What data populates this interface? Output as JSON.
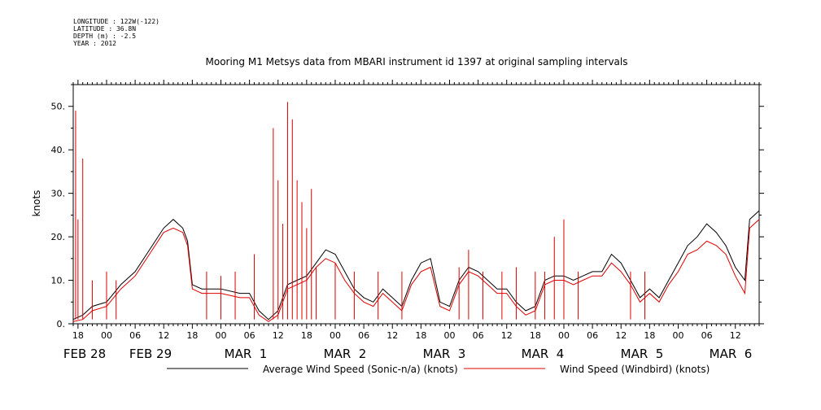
{
  "header": {
    "meta_lines": [
      "LONGITUDE : 122W(-122)",
      "LATITUDE : 36.8N",
      "DEPTH (m) : -2.5",
      "YEAR : 2012"
    ]
  },
  "chart_data": {
    "type": "line",
    "title": "Mooring M1 Metsys data from MBARI instrument id 1397 at original sampling intervals",
    "ylabel": "knots",
    "xlabel": "",
    "ylim": [
      0,
      55
    ],
    "xlim": [
      -7,
      137
    ],
    "x_unit": "hours since FEB 28 00:00 (2012)",
    "yticks": [
      0,
      10,
      20,
      30,
      40,
      50
    ],
    "ytick_labels": [
      "0.",
      "10.",
      "20.",
      "30.",
      "40.",
      "50."
    ],
    "xtick_hours": [
      -6,
      0,
      6,
      12,
      18,
      24,
      30,
      36,
      42,
      48,
      54,
      60,
      66,
      72,
      78,
      84,
      90,
      96,
      102,
      108,
      114,
      120,
      126,
      132
    ],
    "xtick_labels": [
      "18",
      "00",
      "06",
      "12",
      "18",
      "00",
      "06",
      "12",
      "18",
      "00",
      "06",
      "12",
      "18",
      "00",
      "06",
      "12",
      "18",
      "00",
      "06",
      "12",
      "18",
      "00",
      "06",
      "12"
    ],
    "date_labels": [
      {
        "text": "FEB 28",
        "hour": 0
      },
      {
        "text": "FEB 29",
        "hour": 24
      },
      {
        "text": "MAR  1",
        "hour": 48
      },
      {
        "text": "MAR  2",
        "hour": 72
      },
      {
        "text": "MAR  3",
        "hour": 96
      },
      {
        "text": "MAR  4",
        "hour": 120
      },
      {
        "text": "MAR  5",
        "hour": 144
      },
      {
        "text": "MAR  6",
        "hour": 168
      }
    ],
    "legend_position": "bottom",
    "grid": false,
    "series": [
      {
        "name": "Average Wind Speed (Sonic-n/a) (knots)",
        "color": "#000000",
        "points": [
          [
            -7,
            1
          ],
          [
            -5,
            2
          ],
          [
            -3,
            4
          ],
          [
            0,
            5
          ],
          [
            3,
            9
          ],
          [
            6,
            12
          ],
          [
            9,
            17
          ],
          [
            12,
            22
          ],
          [
            14,
            24
          ],
          [
            16,
            22
          ],
          [
            17,
            19
          ],
          [
            18,
            9
          ],
          [
            20,
            8
          ],
          [
            24,
            8
          ],
          [
            28,
            7
          ],
          [
            30,
            7
          ],
          [
            32,
            3
          ],
          [
            34,
            1
          ],
          [
            36,
            3
          ],
          [
            38,
            9
          ],
          [
            40,
            10
          ],
          [
            42,
            11
          ],
          [
            44,
            14
          ],
          [
            46,
            17
          ],
          [
            48,
            16
          ],
          [
            50,
            12
          ],
          [
            52,
            8
          ],
          [
            54,
            6
          ],
          [
            56,
            5
          ],
          [
            58,
            8
          ],
          [
            60,
            6
          ],
          [
            62,
            4
          ],
          [
            64,
            10
          ],
          [
            66,
            14
          ],
          [
            68,
            15
          ],
          [
            70,
            5
          ],
          [
            72,
            4
          ],
          [
            74,
            10
          ],
          [
            76,
            13
          ],
          [
            78,
            12
          ],
          [
            80,
            10
          ],
          [
            82,
            8
          ],
          [
            84,
            8
          ],
          [
            86,
            5
          ],
          [
            88,
            3
          ],
          [
            90,
            4
          ],
          [
            92,
            10
          ],
          [
            94,
            11
          ],
          [
            96,
            11
          ],
          [
            98,
            10
          ],
          [
            100,
            11
          ],
          [
            102,
            12
          ],
          [
            104,
            12
          ],
          [
            106,
            16
          ],
          [
            108,
            14
          ],
          [
            110,
            10
          ],
          [
            112,
            6
          ],
          [
            114,
            8
          ],
          [
            116,
            6
          ],
          [
            118,
            10
          ],
          [
            120,
            14
          ],
          [
            122,
            18
          ],
          [
            124,
            20
          ],
          [
            126,
            23
          ],
          [
            128,
            21
          ],
          [
            130,
            18
          ],
          [
            132,
            13
          ],
          [
            134,
            10
          ],
          [
            135,
            24
          ],
          [
            137,
            26
          ]
        ]
      },
      {
        "name": "Wind Speed (Windbird) (knots)",
        "color": "#dd0000",
        "points": [
          [
            -7,
            0.5
          ],
          [
            -5,
            1
          ],
          [
            -3,
            3
          ],
          [
            0,
            4
          ],
          [
            3,
            8
          ],
          [
            6,
            11
          ],
          [
            9,
            16
          ],
          [
            12,
            21
          ],
          [
            14,
            22
          ],
          [
            16,
            21
          ],
          [
            17,
            18
          ],
          [
            18,
            8
          ],
          [
            20,
            7
          ],
          [
            24,
            7
          ],
          [
            28,
            6
          ],
          [
            30,
            6
          ],
          [
            32,
            2
          ],
          [
            34,
            0.5
          ],
          [
            36,
            2
          ],
          [
            38,
            8
          ],
          [
            40,
            9
          ],
          [
            42,
            10
          ],
          [
            44,
            13
          ],
          [
            46,
            15
          ],
          [
            48,
            14
          ],
          [
            50,
            10
          ],
          [
            52,
            7
          ],
          [
            54,
            5
          ],
          [
            56,
            4
          ],
          [
            58,
            7
          ],
          [
            60,
            5
          ],
          [
            62,
            3
          ],
          [
            64,
            9
          ],
          [
            66,
            12
          ],
          [
            68,
            13
          ],
          [
            70,
            4
          ],
          [
            72,
            3
          ],
          [
            74,
            9
          ],
          [
            76,
            12
          ],
          [
            78,
            11
          ],
          [
            80,
            9
          ],
          [
            82,
            7
          ],
          [
            84,
            7
          ],
          [
            86,
            4
          ],
          [
            88,
            2
          ],
          [
            90,
            3
          ],
          [
            92,
            9
          ],
          [
            94,
            10
          ],
          [
            96,
            10
          ],
          [
            98,
            9
          ],
          [
            100,
            10
          ],
          [
            102,
            11
          ],
          [
            104,
            11
          ],
          [
            106,
            14
          ],
          [
            108,
            12
          ],
          [
            110,
            9
          ],
          [
            112,
            5
          ],
          [
            114,
            7
          ],
          [
            116,
            5
          ],
          [
            118,
            9
          ],
          [
            120,
            12
          ],
          [
            122,
            16
          ],
          [
            124,
            17
          ],
          [
            126,
            19
          ],
          [
            128,
            18
          ],
          [
            130,
            16
          ],
          [
            132,
            11
          ],
          [
            134,
            7
          ],
          [
            135,
            22
          ],
          [
            137,
            24
          ]
        ],
        "spikes": [
          [
            -6.5,
            49
          ],
          [
            -6,
            24
          ],
          [
            -5,
            38
          ],
          [
            -3,
            10
          ],
          [
            0,
            12
          ],
          [
            2,
            10
          ],
          [
            21,
            12
          ],
          [
            24,
            11
          ],
          [
            27,
            12
          ],
          [
            31,
            16
          ],
          [
            35,
            45
          ],
          [
            36,
            33
          ],
          [
            37,
            23
          ],
          [
            38,
            51
          ],
          [
            39,
            47
          ],
          [
            40,
            33
          ],
          [
            41,
            28
          ],
          [
            42,
            22
          ],
          [
            43,
            31
          ],
          [
            44,
            13
          ],
          [
            48,
            14
          ],
          [
            52,
            12
          ],
          [
            57,
            12
          ],
          [
            62,
            12
          ],
          [
            74,
            13
          ],
          [
            76,
            17
          ],
          [
            79,
            12
          ],
          [
            83,
            12
          ],
          [
            86,
            13
          ],
          [
            90,
            12
          ],
          [
            92,
            12
          ],
          [
            94,
            20
          ],
          [
            96,
            24
          ],
          [
            99,
            12
          ],
          [
            110,
            12
          ],
          [
            113,
            12
          ]
        ]
      }
    ]
  }
}
